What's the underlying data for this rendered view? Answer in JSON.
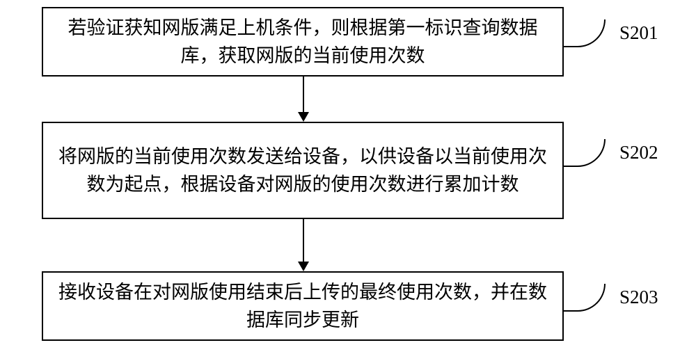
{
  "flowchart": {
    "type": "flowchart",
    "background_color": "#ffffff",
    "border_color": "#000000",
    "text_color": "#000000",
    "font_size": 27,
    "font_family": "SimSun",
    "steps": [
      {
        "id": "S201",
        "text": "若验证获知网版满足上机条件，则根据第一标识查询数据库，获取网版的当前使用次数",
        "label": "S201"
      },
      {
        "id": "S202",
        "text": "将网版的当前使用次数发送给设备，以供设备以当前使用次数为起点，根据设备对网版的使用次数进行累加计数",
        "label": "S202"
      },
      {
        "id": "S203",
        "text": "接收设备在对网版使用结束后上传的最终使用次数，并在数据库同步更新",
        "label": "S203"
      }
    ],
    "arrows": [
      {
        "from": "S201",
        "to": "S202"
      },
      {
        "from": "S202",
        "to": "S203"
      }
    ]
  }
}
